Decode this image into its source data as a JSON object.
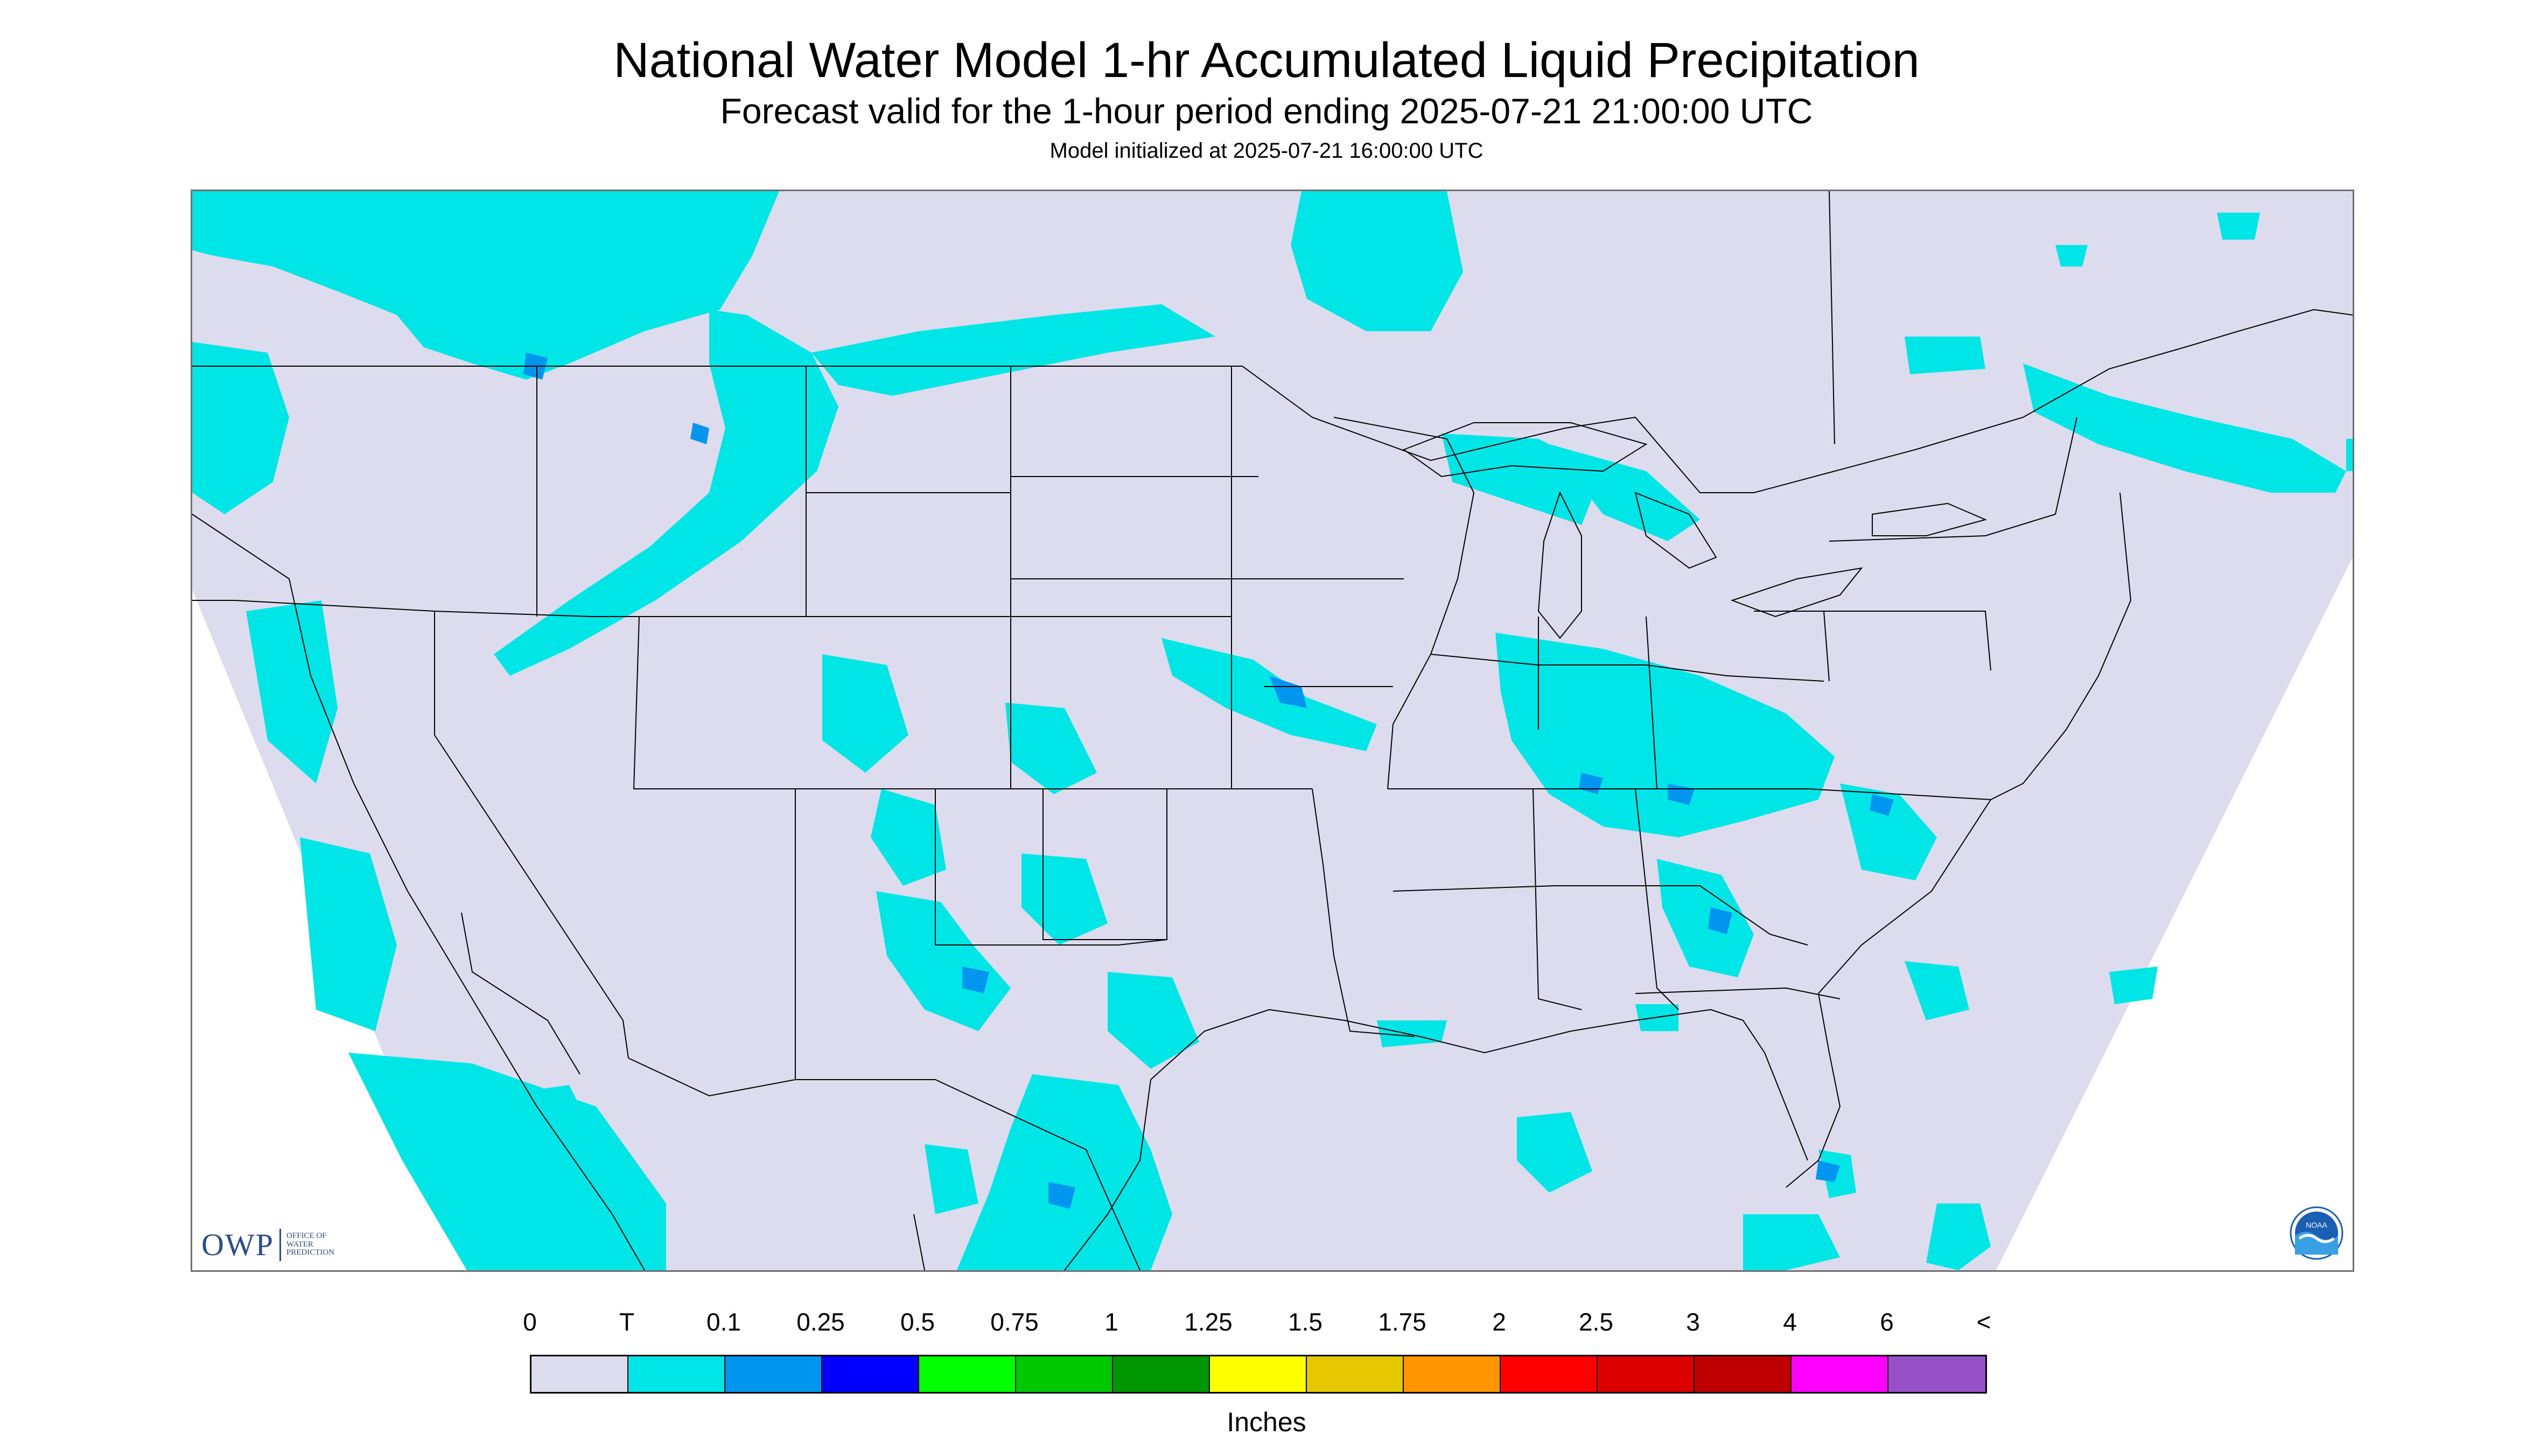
{
  "header": {
    "title": "National Water Model 1-hr Accumulated Liquid Precipitation",
    "subtitle": "Forecast valid for the 1-hour period ending 2025-07-21 21:00:00 UTC",
    "init_line": "Model initialized at 2025-07-21 16:00:00 UTC"
  },
  "map": {
    "region": "Contiguous United States",
    "background_color": "#dcdcee",
    "outside_domain_color": "#ffffff",
    "boundary_color": "#000000"
  },
  "logos": {
    "owp_letters": "OWP",
    "owp_text_1": "OFFICE OF",
    "owp_text_2": "WATER",
    "owp_text_3": "PREDICTION",
    "noaa_text": "NOAA"
  },
  "legend": {
    "labels": [
      "0",
      "T",
      "0.1",
      "0.25",
      "0.5",
      "0.75",
      "1",
      "1.25",
      "1.5",
      "1.75",
      "2",
      "2.5",
      "3",
      "4",
      "6",
      "<"
    ],
    "colors": [
      "#dcdcee",
      "#00e6e6",
      "#0096f0",
      "#0000ff",
      "#00ff00",
      "#00c800",
      "#009600",
      "#ffff00",
      "#e6c800",
      "#ff9600",
      "#ff0000",
      "#dc0000",
      "#be0000",
      "#ff00ff",
      "#9650c8"
    ],
    "units": "Inches"
  }
}
